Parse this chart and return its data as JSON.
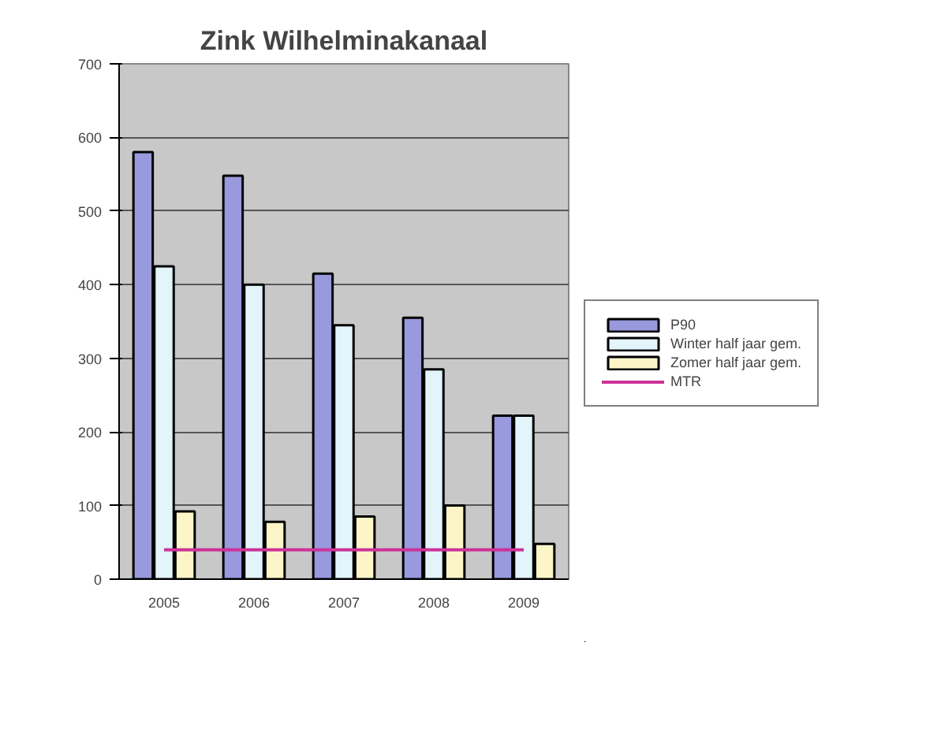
{
  "chart_data": {
    "type": "bar",
    "title": "Zink Wilhelminakanaal",
    "categories": [
      "2005",
      "2006",
      "2007",
      "2008",
      "2009"
    ],
    "series": [
      {
        "name": "P90",
        "color": "#9999dd",
        "values": [
          580,
          548,
          415,
          355,
          222
        ]
      },
      {
        "name": "Winter half jaar gem.",
        "color": "#e3f4fb",
        "values": [
          425,
          400,
          345,
          285,
          222
        ]
      },
      {
        "name": "Zomer half jaar gem.",
        "color": "#fbf5c8",
        "values": [
          92,
          78,
          85,
          100,
          48
        ]
      },
      {
        "name": "MTR",
        "type": "line",
        "color": "#cc3399",
        "values": [
          40,
          40,
          40,
          40,
          40
        ]
      }
    ],
    "ylim": [
      0,
      700
    ],
    "yticks": [
      0,
      100,
      200,
      300,
      400,
      500,
      600,
      700
    ],
    "grid": "y",
    "legend": "right",
    "line_style": "solid"
  }
}
